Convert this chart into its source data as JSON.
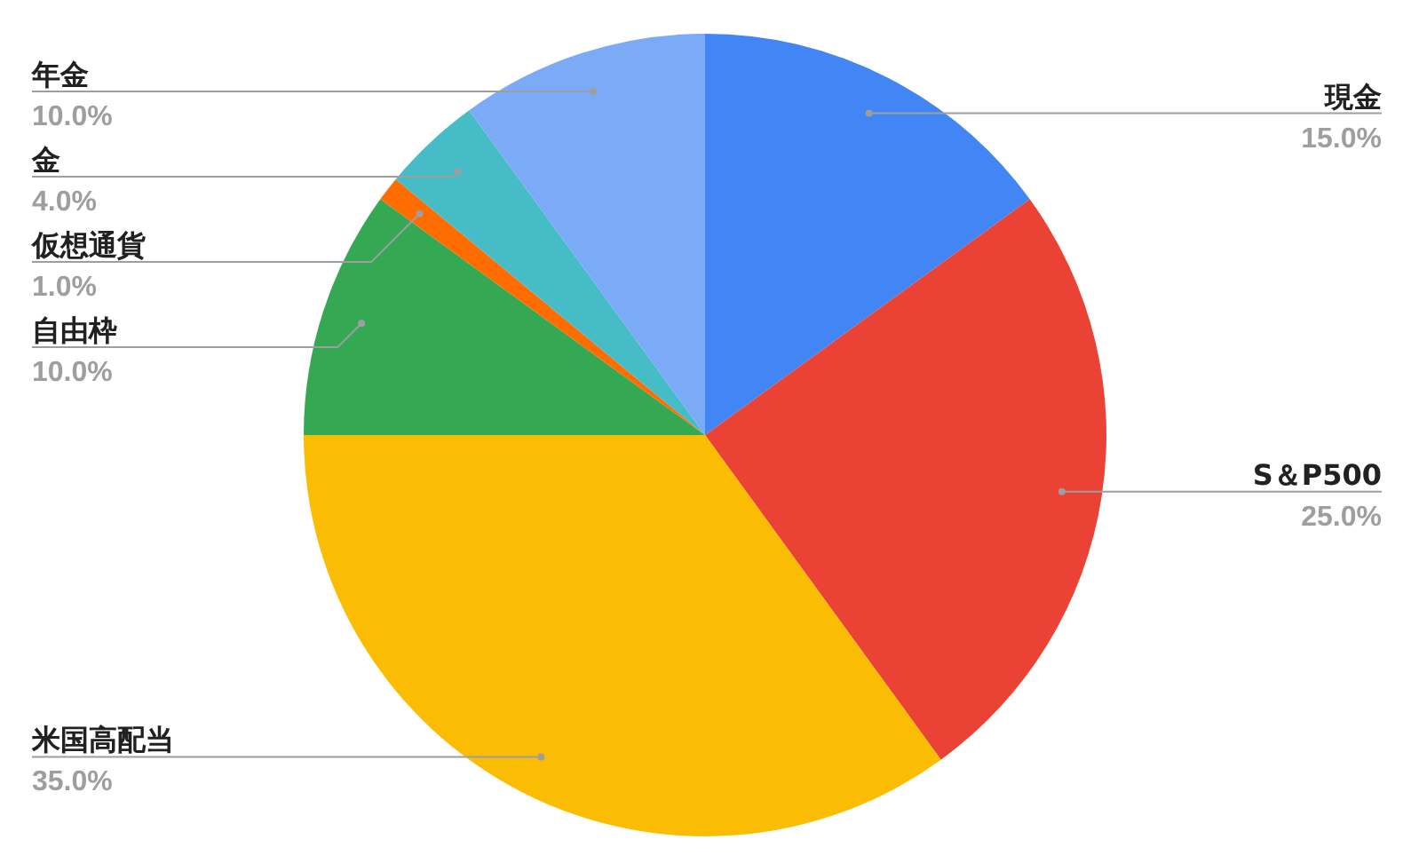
{
  "chart_data": {
    "type": "pie",
    "categories": [
      "現金",
      "S＆P500",
      "米国高配当",
      "自由枠",
      "仮想通貨",
      "金",
      "年金"
    ],
    "values": [
      15,
      25,
      35,
      10,
      1,
      4,
      10
    ],
    "colors": [
      "#4285f4",
      "#ea4335",
      "#fbbc04",
      "#34a853",
      "#ff6d01",
      "#46bdc6",
      "#7baaf7"
    ],
    "value_labels": [
      "15.0%",
      "25.0%",
      "35.0%",
      "10.0%",
      "1.0%",
      "4.0%",
      "10.0%"
    ],
    "legend": false
  }
}
